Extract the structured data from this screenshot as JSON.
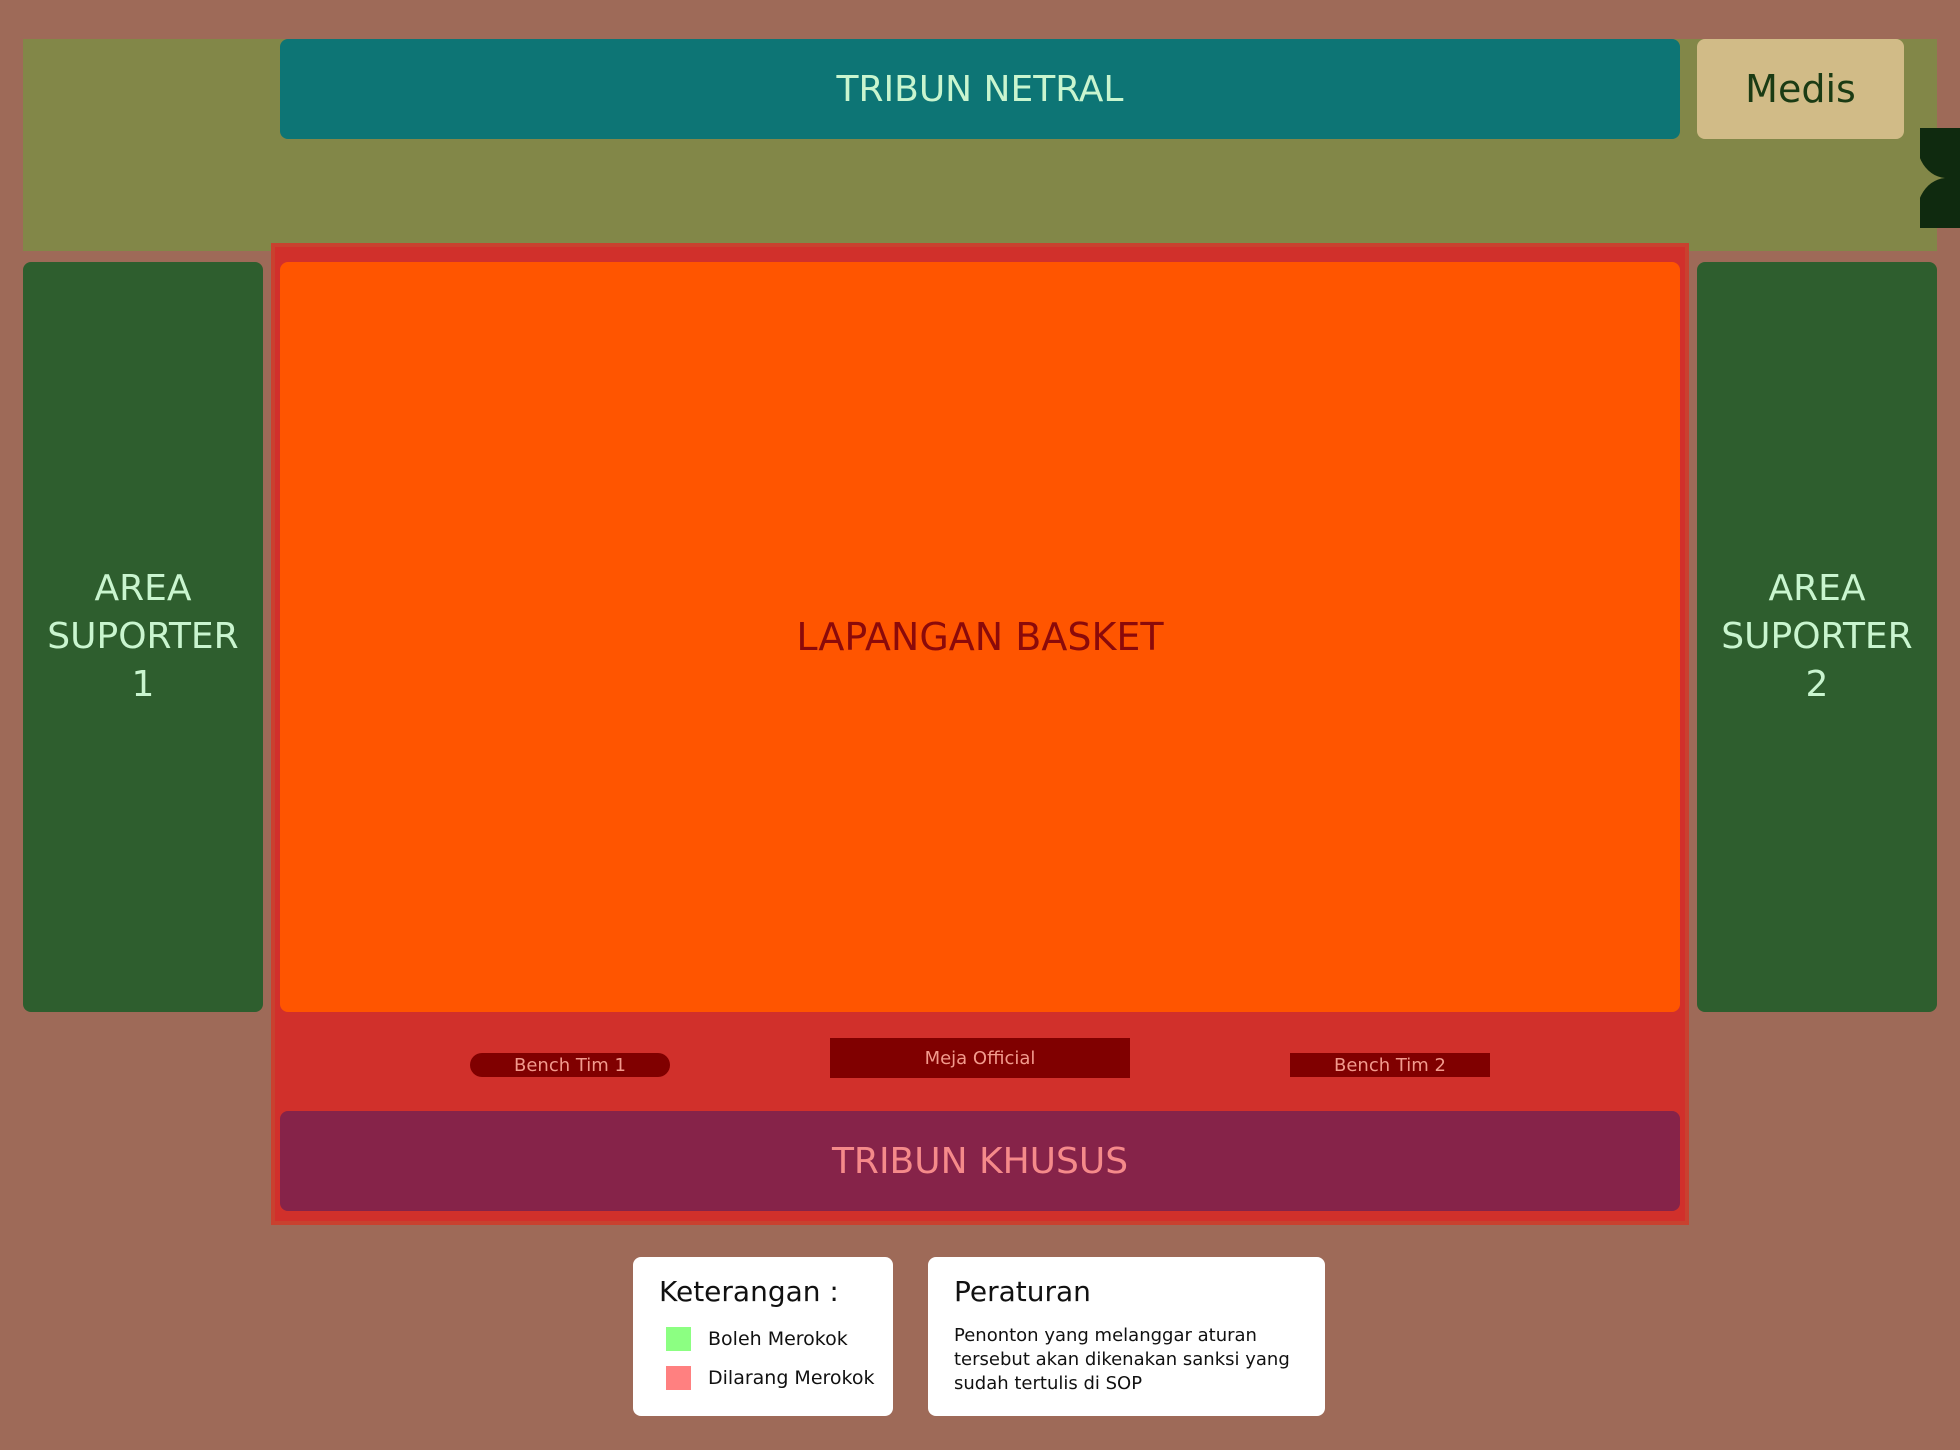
{
  "venue": {
    "tribun_netral": "TRIBUN NETRAL",
    "medis": "Medis",
    "supporter_1": {
      "line1": "AREA",
      "line2": "SUPORTER",
      "line3": "1"
    },
    "supporter_2": {
      "line1": "AREA",
      "line2": "SUPORTER",
      "line3": "2"
    },
    "court": "LAPANGAN BASKET",
    "bench_1": "Bench Tim 1",
    "meja_official": "Meja Official",
    "bench_2": "Bench Tim 2",
    "tribun_khusus": "TRIBUN KHUSUS"
  },
  "legend": {
    "title": "Keterangan :",
    "items": [
      {
        "label": "Boleh Merokok",
        "color": "#8cff82"
      },
      {
        "label": "Dilarang Merokok",
        "color": "#ff8080"
      }
    ]
  },
  "rules": {
    "title": "Peraturan",
    "text": "Penonton yang melanggar aturan tersebut akan dikenakan sanksi yang sudah tertulis di SOP"
  },
  "colors": {
    "background": "#9e6a58",
    "smoking_zone": "#828748",
    "tribun_netral": "#0d7575",
    "medis": "#d1bb87",
    "supporter": "#2e5e2e",
    "court_frame": "#d1302b",
    "court": "#ff5500",
    "bench": "#800000",
    "tribun_khusus": "#862349"
  },
  "icons": {
    "exit_marker": "exit-door-icon"
  }
}
